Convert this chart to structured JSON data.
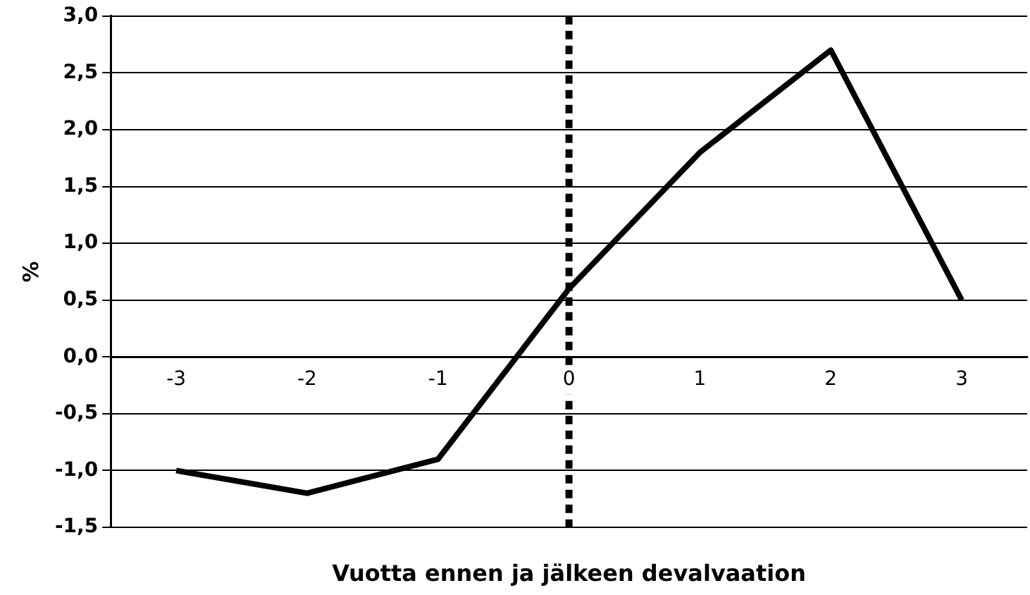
{
  "chart_data": {
    "type": "line",
    "xlabel": "Vuotta ennen ja jälkeen devalvaation",
    "ylabel": "%",
    "categories": [
      "-3",
      "-2",
      "-1",
      "0",
      "1",
      "2",
      "3"
    ],
    "series": [
      {
        "color": "#000000",
        "values": [
          -1.0,
          -1.2,
          -0.9,
          0.6,
          1.8,
          2.7,
          0.5
        ]
      }
    ],
    "ylim": [
      -1.5,
      3.0
    ],
    "yticks": [
      {
        "value": -1.5,
        "label": "-1,5"
      },
      {
        "value": -1.0,
        "label": "-1,0"
      },
      {
        "value": -0.5,
        "label": "-0,5"
      },
      {
        "value": 0,
        "label": "0,0"
      },
      {
        "value": 0.5,
        "label": "0,5"
      },
      {
        "value": 1.0,
        "label": "1,0"
      },
      {
        "value": 1.5,
        "label": "1,5"
      },
      {
        "value": 2.0,
        "label": "2,0"
      },
      {
        "value": 2.5,
        "label": "2,5"
      },
      {
        "value": 3.0,
        "label": "3,0"
      }
    ],
    "grid": "y",
    "legend": false,
    "marker": "none",
    "line_style": "solid",
    "ref_lines": [
      {
        "axis": "x",
        "value": "0",
        "color": "#000000",
        "line_style": "dotted"
      }
    ]
  }
}
